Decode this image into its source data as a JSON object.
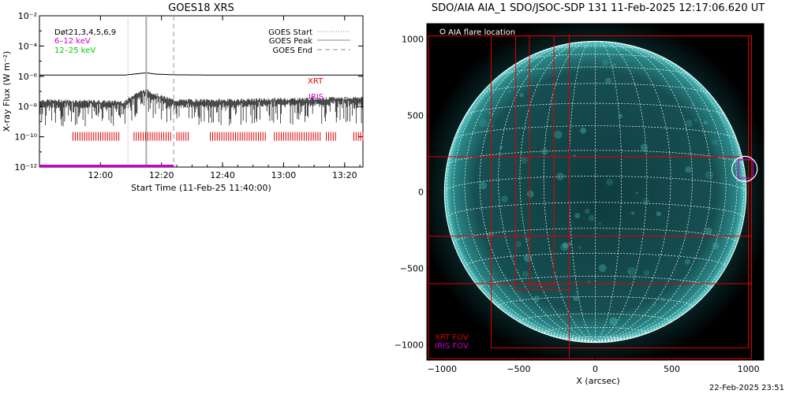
{
  "goes_title": "GOES18 XRS",
  "aia_title": "SDO/AIA AIA_1 SDO/JSOC-SDP 131 11-Feb-2025 12:17:06.620 UT",
  "timestamp": "22-Feb-2025 23:51",
  "colors": {
    "xrt": "#e00000",
    "iris": "#cc00cc",
    "low": "#00cc00",
    "disk": "#2a8a8a",
    "goes_line": "#000000"
  },
  "chart_data": [
    {
      "type": "line",
      "title": "GOES18 XRS",
      "xlabel": "Start Time (11-Feb-25 11:40:00)",
      "ylabel": "X-ray Flux (W m⁻²)",
      "y_scale": "log",
      "ylim": [
        1e-12,
        0.01
      ],
      "xlim_minutes": [
        0,
        106
      ],
      "x_ticks": [
        {
          "m": 20,
          "label": "12:00"
        },
        {
          "m": 40,
          "label": "12:20"
        },
        {
          "m": 60,
          "label": "12:40"
        },
        {
          "m": 80,
          "label": "13:00"
        },
        {
          "m": 100,
          "label": "13:20"
        }
      ],
      "y_ticks": [
        {
          "exp": -2,
          "label": "10⁻²"
        },
        {
          "exp": -4,
          "label": "10⁻⁴"
        },
        {
          "exp": -6,
          "label": "10⁻⁶"
        },
        {
          "exp": -8,
          "label": "10⁻⁸"
        },
        {
          "exp": -10,
          "label": "10⁻¹⁰"
        },
        {
          "exp": -12,
          "label": "10⁻¹²"
        }
      ],
      "legend_left": [
        "Døt21,3,4,5,6,9",
        "6–12 keV",
        "12–25 keV"
      ],
      "legend_right": [
        "GOES Start",
        "GOES Peak",
        "GOES End"
      ],
      "goes_markers_minutes": {
        "start": 29,
        "peak": 35,
        "end": 44
      },
      "series": [
        {
          "name": "high",
          "x": [
            0,
            28,
            31,
            35,
            38,
            44,
            60,
            106
          ],
          "y": [
            1.2e-06,
            1.2e-06,
            1.4e-06,
            1.7e-06,
            1.4e-06,
            1.25e-06,
            1.2e-06,
            1.2e-06
          ]
        },
        {
          "name": "low",
          "x": [
            0,
            28,
            31,
            35,
            38,
            44,
            60,
            106
          ],
          "y": [
            2e-08,
            1.6e-08,
            5e-08,
            1e-07,
            5e-08,
            2e-08,
            2e-08,
            3e-08
          ]
        }
      ],
      "xrt_label": "XRT",
      "iris_label": "IRIS",
      "xrt_intervals_minutes": [
        [
          11,
          26
        ],
        [
          31,
          43
        ],
        [
          45,
          49
        ],
        [
          56,
          74
        ],
        [
          77,
          92
        ],
        [
          94,
          97
        ],
        [
          103,
          106
        ]
      ],
      "iris_interval_minutes": [
        0,
        44
      ]
    },
    {
      "type": "scatter",
      "xlabel": "X (arcsec)",
      "ylabel": "",
      "xlim": [
        -1100,
        1100
      ],
      "ylim": [
        -1100,
        1100
      ],
      "x_ticks": [
        -1000,
        -500,
        0,
        500,
        1000
      ],
      "y_ticks": [
        1000,
        500,
        0,
        -500,
        -1000
      ],
      "legend": [
        "AIA flare location"
      ],
      "fov_labels": [
        "XRT FOV",
        "IRIS FOV"
      ],
      "flare": {
        "x": 975,
        "y": 150
      },
      "solar_radius_arcsec": 985,
      "xrt_fovs": [
        {
          "x0": -1090,
          "x1": 1020,
          "y0": -1090,
          "y1": 1020
        },
        {
          "x0": -680,
          "x1": 1000,
          "y0": -1020,
          "y1": 1020
        },
        {
          "x0": -1090,
          "x1": 1020,
          "y0": -600,
          "y1": 1020
        },
        {
          "x0": -1090,
          "x1": 1020,
          "y0": -290,
          "y1": 230
        },
        {
          "x0": -520,
          "x1": -170,
          "y0": -640,
          "y1": 1020
        },
        {
          "x0": -430,
          "x1": -270,
          "y0": -610,
          "y1": 1020
        },
        {
          "x0": -170,
          "x1": 1020,
          "y0": -1090,
          "y1": 230
        }
      ],
      "iris_fov": {
        "x0": 935,
        "x1": 1030,
        "y0": 90,
        "y1": 210
      }
    }
  ]
}
